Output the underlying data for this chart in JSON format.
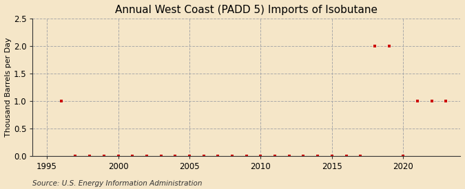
{
  "title": "Annual West Coast (PADD 5) Imports of Isobutane",
  "ylabel": "Thousand Barrels per Day",
  "source": "Source: U.S. Energy Information Administration",
  "background_color": "#f5e6c8",
  "plot_background_color": "#f5e6c8",
  "ylim": [
    0.0,
    2.5
  ],
  "yticks": [
    0.0,
    0.5,
    1.0,
    1.5,
    2.0,
    2.5
  ],
  "xlim": [
    1994.0,
    2024.0
  ],
  "xticks": [
    1995,
    2000,
    2005,
    2010,
    2015,
    2020
  ],
  "years": [
    1996,
    1997,
    1998,
    1999,
    2000,
    2001,
    2002,
    2003,
    2004,
    2005,
    2006,
    2007,
    2008,
    2009,
    2010,
    2011,
    2012,
    2013,
    2014,
    2015,
    2016,
    2017,
    2018,
    2019,
    2020,
    2021,
    2022,
    2023
  ],
  "values": [
    1.0,
    0.0,
    0.0,
    0.0,
    0.0,
    0.0,
    0.0,
    0.0,
    0.0,
    0.0,
    0.0,
    0.0,
    0.0,
    0.0,
    0.0,
    0.0,
    0.0,
    0.0,
    0.0,
    0.0,
    0.0,
    0.0,
    2.0,
    2.0,
    0.0,
    1.0,
    1.0,
    1.0
  ],
  "marker_color": "#cc0000",
  "marker_size": 3.5,
  "grid_color": "#aaaaaa",
  "spine_color": "#333333",
  "title_fontsize": 11,
  "label_fontsize": 8,
  "tick_fontsize": 8.5,
  "source_fontsize": 7.5
}
